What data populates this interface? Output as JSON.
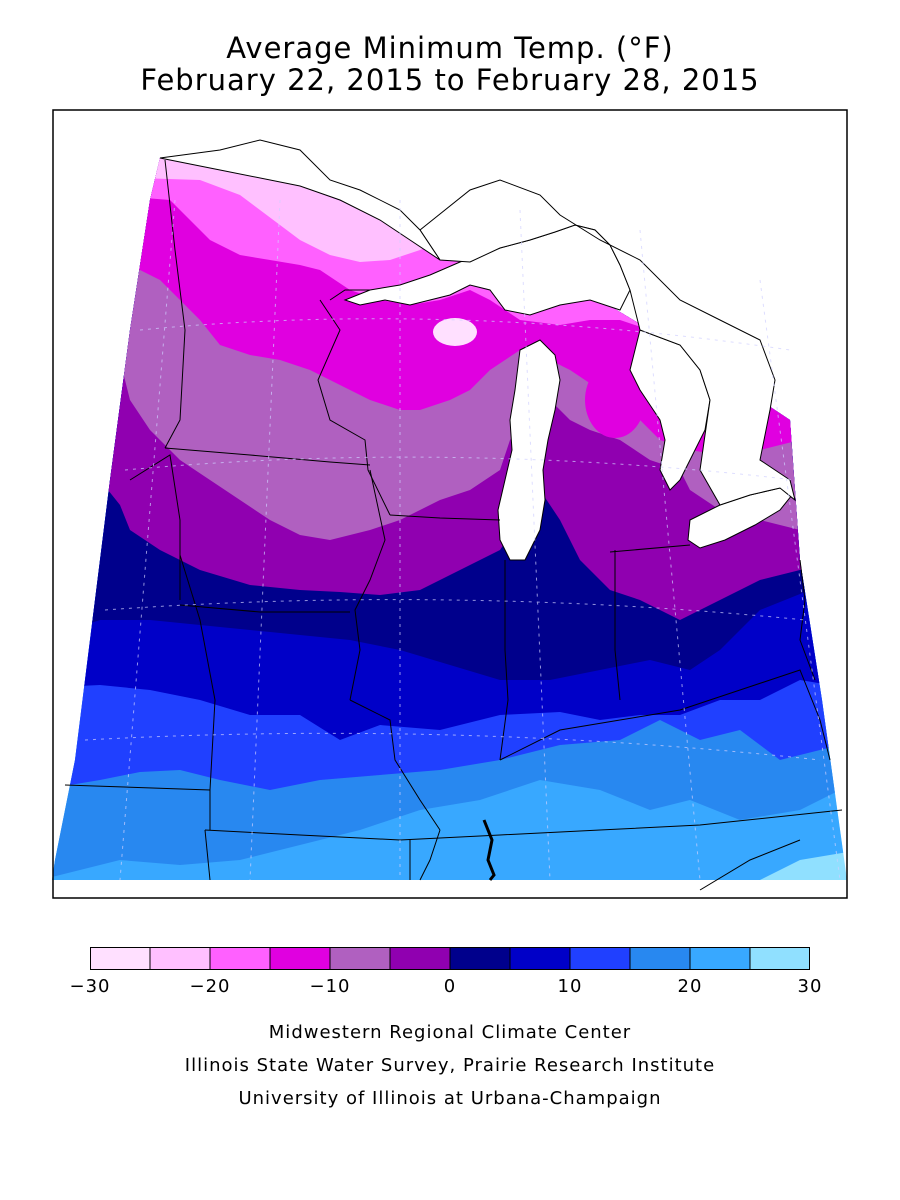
{
  "header": {
    "title_line1": "Average Minimum Temp. (°F)",
    "title_line2": "February 22, 2015 to February 28, 2015"
  },
  "legend": {
    "ticks": [
      "−30",
      "−20",
      "−10",
      "0",
      "10",
      "20",
      "30"
    ],
    "bins": [
      {
        "min": -30,
        "max": -25,
        "color": "#ffe0ff"
      },
      {
        "min": -25,
        "max": -20,
        "color": "#ffc0ff"
      },
      {
        "min": -20,
        "max": -15,
        "color": "#ff60ff"
      },
      {
        "min": -15,
        "max": -10,
        "color": "#e000e0"
      },
      {
        "min": -10,
        "max": -5,
        "color": "#b060c0"
      },
      {
        "min": -5,
        "max": 0,
        "color": "#9000b0"
      },
      {
        "min": 0,
        "max": 5,
        "color": "#00008c"
      },
      {
        "min": 5,
        "max": 10,
        "color": "#0000c8"
      },
      {
        "min": 10,
        "max": 15,
        "color": "#2040ff"
      },
      {
        "min": 15,
        "max": 20,
        "color": "#2888f0"
      },
      {
        "min": 20,
        "max": 25,
        "color": "#38a8ff"
      },
      {
        "min": 25,
        "max": 30,
        "color": "#90e0ff"
      }
    ]
  },
  "map": {
    "region": "Midwest United States",
    "projection": "lambert-conformal",
    "colors": {
      "water": "#ffffff",
      "boundary": "#000000",
      "gridline": "#d0d0ff"
    }
  },
  "credits": {
    "line1": "Midwestern Regional Climate Center",
    "line2": "Illinois State Water Survey, Prairie Research Institute",
    "line3": "University of Illinois at Urbana-Champaign"
  }
}
